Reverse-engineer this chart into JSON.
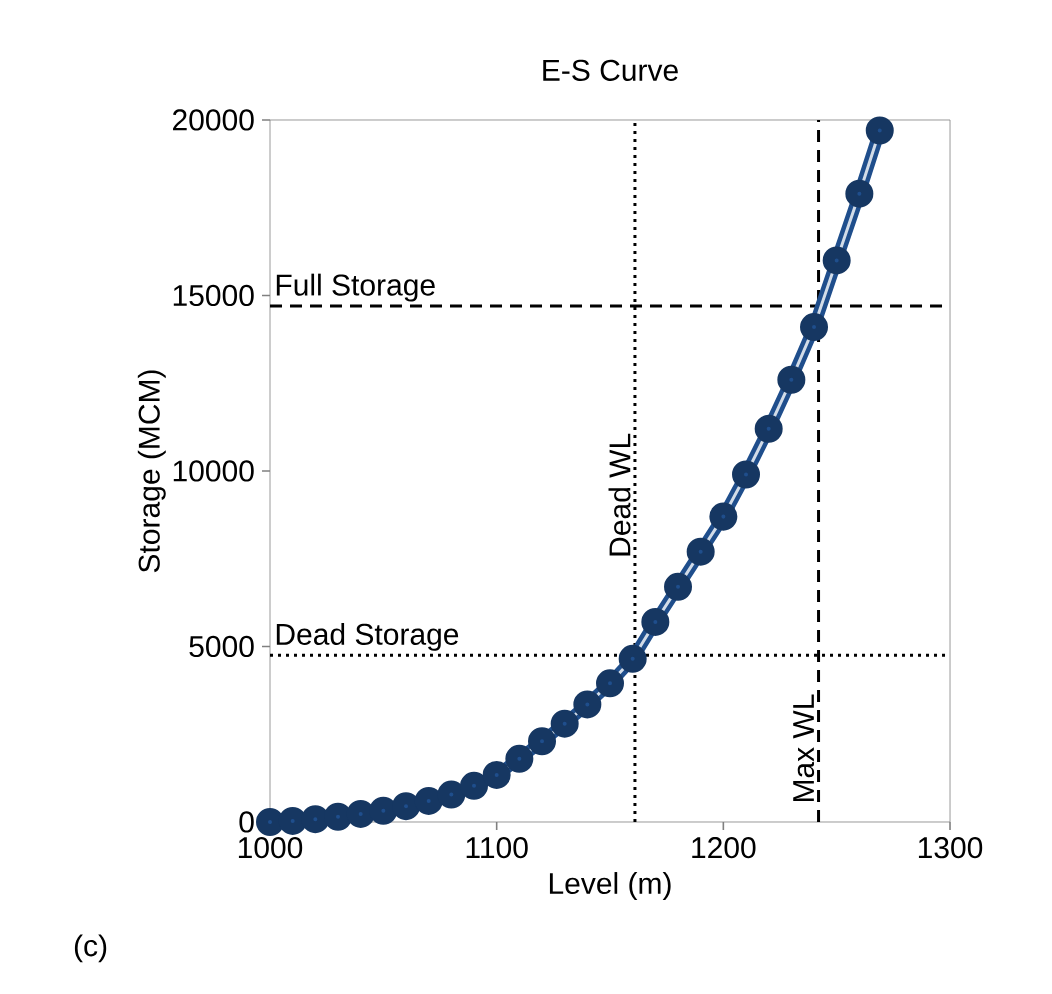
{
  "chart_data": {
    "type": "line",
    "title": "E-S Curve",
    "xlabel": "Level (m)",
    "ylabel": "Storage (MCM)",
    "x": [
      1000,
      1010,
      1020,
      1030,
      1040,
      1050,
      1060,
      1070,
      1080,
      1090,
      1100,
      1110,
      1120,
      1130,
      1140,
      1150,
      1160,
      1170,
      1180,
      1190,
      1200,
      1210,
      1220,
      1230,
      1240,
      1250,
      1260,
      1269
    ],
    "series": [
      {
        "color": "#1f4e8c",
        "values": [
          0,
          30,
          80,
          150,
          230,
          320,
          450,
          600,
          780,
          1030,
          1340,
          1800,
          2300,
          2800,
          3350,
          3950,
          4650,
          5700,
          6700,
          7700,
          8700,
          9900,
          11200,
          12600,
          14100,
          16000,
          17900,
          19700
        ]
      }
    ],
    "xlim": [
      1000,
      1300
    ],
    "ylim": [
      0,
      20000
    ],
    "xticks": [
      1000,
      1100,
      1200,
      1300
    ],
    "yticks": [
      0,
      5000,
      10000,
      15000,
      20000
    ],
    "marker": "circle",
    "line_style": "solid",
    "ref_lines": [
      {
        "axis": "x",
        "value": 1161,
        "label": "Dead WL",
        "line_style": "dotted"
      },
      {
        "axis": "x",
        "value": 1242,
        "label": "Max WL",
        "line_style": "dashed"
      },
      {
        "axis": "y",
        "value": 14700,
        "label": "Full Storage",
        "line_style": "dashed"
      },
      {
        "axis": "y",
        "value": 4750,
        "label": "Dead Storage",
        "line_style": "dotted"
      }
    ],
    "annotations": [
      "(c)"
    ]
  }
}
